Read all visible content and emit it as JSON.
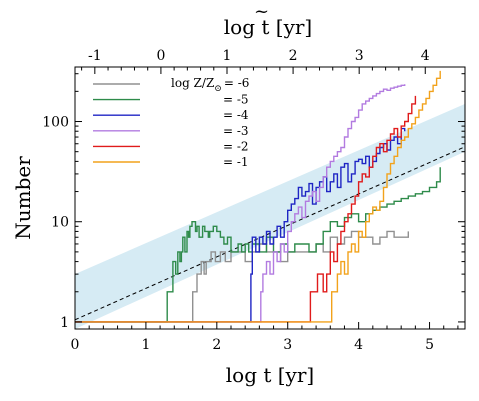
{
  "chart_data": {
    "type": "line",
    "xlabel": "log t [yr]",
    "ylabel": "Number",
    "top_xlabel_base": "log ",
    "top_xlabel_var": "t",
    "top_xlabel_tilde": "~",
    "top_xlabel_unit": " [yr]",
    "xlim": [
      0,
      5.5
    ],
    "ylim": [
      0.85,
      350
    ],
    "yscale": "log",
    "x_ticks": [
      0,
      1,
      2,
      3,
      4,
      5
    ],
    "x_tick_labels": [
      "0",
      "1",
      "2",
      "3",
      "4",
      "5"
    ],
    "y_ticks": [
      1,
      10,
      100
    ],
    "y_tick_labels": [
      "1",
      "10",
      "100"
    ],
    "top_x_ticks": [
      -1,
      0,
      1,
      2,
      3,
      4
    ],
    "top_x_tick_labels": [
      "-1",
      "0",
      "1",
      "2",
      "3",
      "4"
    ],
    "top_axis_x_at_bottom0": -1.3,
    "top_axis_scale": 0.932,
    "legend": {
      "placement": "top-left",
      "heading": "log Z/Z",
      "sun_symbol": "⊙"
    },
    "band": {
      "color": "#d6ebf4",
      "lower": {
        "x": [
          0,
          5.5
        ],
        "y": [
          0.85,
          50
        ]
      },
      "upper": {
        "x": [
          0,
          5.5
        ],
        "y": [
          3.0,
          150
        ]
      }
    },
    "fit_line": {
      "x": [
        0,
        5.5
      ],
      "y": [
        1.05,
        56
      ],
      "color": "#000000"
    },
    "series": [
      {
        "label": "= -6",
        "color": "#909090",
        "x": [
          0.0,
          1.65,
          1.66,
          1.7,
          1.72,
          1.78,
          1.82,
          1.85,
          1.92,
          1.98,
          2.05,
          2.12,
          2.2,
          2.3,
          2.4,
          2.5,
          2.6,
          2.7,
          2.8,
          2.9,
          3.0,
          3.1,
          3.2,
          3.3,
          3.4,
          3.5,
          3.6,
          3.7,
          3.8,
          3.9,
          4.0,
          4.1,
          4.2,
          4.3,
          4.4,
          4.5,
          4.6,
          4.7
        ],
        "y": [
          1,
          1,
          2,
          2,
          3,
          4,
          3,
          4,
          5,
          4,
          5,
          4,
          5,
          5,
          4,
          5,
          6,
          5,
          5,
          4,
          5,
          5,
          5,
          5,
          6,
          5,
          7,
          6,
          7,
          8,
          7,
          7,
          6,
          7,
          8,
          7,
          7,
          8
        ]
      },
      {
        "label": "= -5",
        "color": "#2e8b4a",
        "x": [
          0.0,
          1.28,
          1.3,
          1.38,
          1.42,
          1.45,
          1.48,
          1.5,
          1.52,
          1.55,
          1.58,
          1.6,
          1.62,
          1.65,
          1.7,
          1.72,
          1.75,
          1.8,
          1.83,
          1.88,
          1.9,
          1.95,
          2.0,
          2.05,
          2.1,
          2.15,
          2.2,
          2.3,
          2.35,
          2.4,
          2.45,
          2.5,
          2.6,
          2.7,
          2.8,
          2.9,
          3.0,
          3.1,
          3.2,
          3.3,
          3.4,
          3.5,
          3.6,
          3.7,
          3.8,
          3.9,
          4.0,
          4.1,
          4.2,
          4.3,
          4.4,
          4.5,
          4.6,
          4.7,
          4.8,
          4.9,
          5.0,
          5.1,
          5.15
        ],
        "y": [
          1,
          1,
          2,
          4,
          3,
          5,
          4,
          5,
          7,
          5,
          8,
          7,
          9,
          10,
          8,
          9,
          7,
          9,
          8,
          7,
          8,
          9,
          8,
          7,
          6,
          7,
          5,
          6,
          5,
          6,
          5,
          6,
          5,
          7,
          5,
          6,
          5,
          6,
          6,
          5,
          6,
          8,
          10,
          9,
          11,
          12,
          10,
          12,
          13,
          14,
          15,
          16,
          17,
          18,
          19,
          20,
          22,
          25,
          35
        ]
      },
      {
        "label": "= -4",
        "color": "#1f25c4",
        "x": [
          0.0,
          2.45,
          2.48,
          2.5,
          2.55,
          2.6,
          2.65,
          2.7,
          2.75,
          2.8,
          2.85,
          2.9,
          2.95,
          3.0,
          3.05,
          3.1,
          3.15,
          3.2,
          3.25,
          3.3,
          3.35,
          3.4,
          3.45,
          3.5,
          3.55,
          3.6,
          3.65,
          3.7,
          3.75,
          3.8,
          3.85,
          3.9,
          3.95,
          4.0,
          4.05,
          4.1,
          4.15,
          4.2,
          4.25,
          4.3,
          4.35,
          4.4,
          4.45,
          4.5,
          4.55,
          4.6,
          4.65
        ],
        "y": [
          1,
          1,
          3,
          7,
          5,
          7,
          6,
          8,
          6,
          7,
          9,
          7,
          10,
          13,
          15,
          17,
          22,
          18,
          20,
          24,
          15,
          22,
          25,
          28,
          20,
          25,
          30,
          22,
          35,
          38,
          25,
          30,
          40,
          42,
          38,
          45,
          35,
          40,
          48,
          55,
          60,
          52,
          65,
          70,
          60,
          85,
          80
        ]
      },
      {
        "label": "= -3",
        "color": "#b27be0",
        "x": [
          0.0,
          2.6,
          2.62,
          2.65,
          2.7,
          2.75,
          2.8,
          2.85,
          2.9,
          2.95,
          3.0,
          3.05,
          3.1,
          3.15,
          3.2,
          3.25,
          3.3,
          3.35,
          3.4,
          3.45,
          3.5,
          3.55,
          3.6,
          3.65,
          3.7,
          3.75,
          3.8,
          3.85,
          3.9,
          3.95,
          4.0,
          4.05,
          4.1,
          4.15,
          4.2,
          4.25,
          4.3,
          4.35,
          4.4,
          4.45,
          4.5,
          4.55,
          4.6,
          4.65
        ],
        "y": [
          1,
          1,
          2,
          3,
          4,
          3,
          5,
          4,
          6,
          5,
          8,
          10,
          12,
          14,
          11,
          16,
          18,
          20,
          16,
          22,
          28,
          35,
          40,
          45,
          50,
          55,
          70,
          85,
          100,
          110,
          130,
          150,
          160,
          170,
          180,
          190,
          200,
          210,
          205,
          215,
          220,
          225,
          230,
          235
        ]
      },
      {
        "label": "= -2",
        "color": "#e01b1b",
        "x": [
          0.0,
          3.3,
          3.32,
          3.4,
          3.42,
          3.5,
          3.55,
          3.6,
          3.65,
          3.7,
          3.75,
          3.8,
          3.85,
          3.9,
          3.95,
          4.0,
          4.05,
          4.1,
          4.15,
          4.2,
          4.25,
          4.3,
          4.35,
          4.4,
          4.45,
          4.5,
          4.55,
          4.6,
          4.65,
          4.7,
          4.75,
          4.8
        ],
        "y": [
          1,
          1,
          2,
          2,
          3,
          2,
          3,
          5,
          4,
          6,
          8,
          10,
          12,
          15,
          18,
          25,
          30,
          28,
          35,
          45,
          55,
          60,
          50,
          65,
          75,
          85,
          70,
          90,
          100,
          120,
          150,
          180
        ]
      },
      {
        "label": "= -1",
        "color": "#f2a21b",
        "x": [
          0.0,
          3.6,
          3.62,
          3.7,
          3.75,
          3.8,
          3.85,
          3.9,
          3.95,
          4.0,
          4.05,
          4.1,
          4.15,
          4.2,
          4.25,
          4.3,
          4.35,
          4.4,
          4.45,
          4.5,
          4.55,
          4.6,
          4.65,
          4.7,
          4.75,
          4.8,
          4.85,
          4.9,
          4.95,
          5.0,
          5.05,
          5.1,
          5.15
        ],
        "y": [
          1,
          1,
          2,
          3,
          4,
          3,
          5,
          6,
          5,
          8,
          7,
          10,
          12,
          14,
          13,
          16,
          22,
          30,
          38,
          45,
          55,
          65,
          70,
          85,
          95,
          110,
          130,
          150,
          170,
          200,
          230,
          270,
          320
        ]
      }
    ]
  }
}
